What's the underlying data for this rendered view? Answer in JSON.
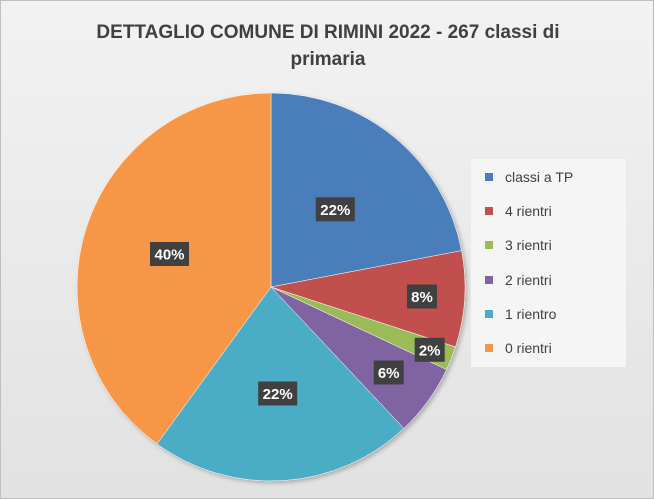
{
  "chart_data": {
    "type": "pie",
    "title": "DETTAGLIO COMUNE DI RIMINI 2022 -  267 classi di primaria",
    "categories": [
      "classi a TP",
      "4 rientri",
      "3 rientri",
      "2 rientri",
      "1 rientro",
      "0 rientri"
    ],
    "values": [
      22,
      8,
      2,
      6,
      22,
      40
    ],
    "data_labels": [
      "22%",
      "8%",
      "2%",
      "6%",
      "22%",
      "40%"
    ],
    "colors": [
      "#4a7ebb",
      "#c0504d",
      "#9bbb59",
      "#8064a2",
      "#4bacc6",
      "#f79646"
    ],
    "legend_position": "right",
    "start_angle": "top, clockwise"
  }
}
